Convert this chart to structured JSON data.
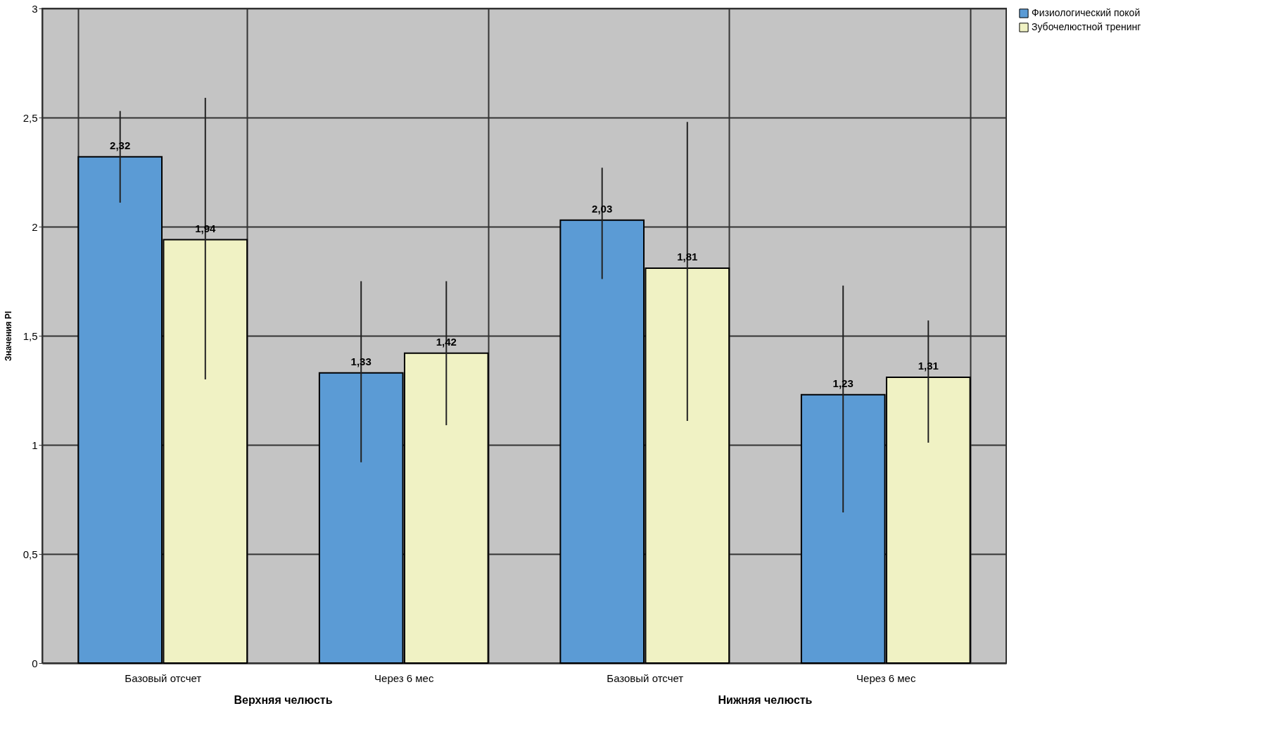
{
  "chart_data": {
    "type": "bar",
    "ylabel": "Значения PI",
    "categories": [
      "Базовый отсчет",
      "Через 6 мес",
      "Базовый отсчет",
      "Через 6 мес"
    ],
    "series": [
      {
        "name": "Физиологический покой",
        "color": "#5b9bd5",
        "values": [
          2.32,
          1.33,
          2.03,
          1.23
        ],
        "errors": [
          [
            2.11,
            2.53
          ],
          [
            0.92,
            1.75
          ],
          [
            1.76,
            2.27
          ],
          [
            0.69,
            1.73
          ]
        ],
        "value_labels": [
          "2,32",
          "1,33",
          "2,03",
          "1,23"
        ]
      },
      {
        "name": "Зубочелюстной тренинг",
        "color": "#f0f2c4",
        "values": [
          1.94,
          1.42,
          1.81,
          1.31
        ],
        "errors": [
          [
            1.3,
            2.59
          ],
          [
            1.09,
            1.75
          ],
          [
            1.11,
            2.48
          ],
          [
            1.01,
            1.57
          ]
        ],
        "value_labels": [
          "1,94",
          "1,42",
          "1,81",
          "1,31"
        ]
      }
    ],
    "ylim": [
      0,
      3
    ],
    "yticks": [
      0,
      {
        "value": 0.5,
        "label": "0,5"
      },
      1,
      {
        "value": 1.5,
        "label": "1,5"
      },
      2,
      {
        "value": 2.5,
        "label": "2,5"
      },
      3
    ],
    "grid": true,
    "legend": "right",
    "annotations": [
      "Верхняя челюсть",
      "Нижняя челюсть"
    ]
  }
}
